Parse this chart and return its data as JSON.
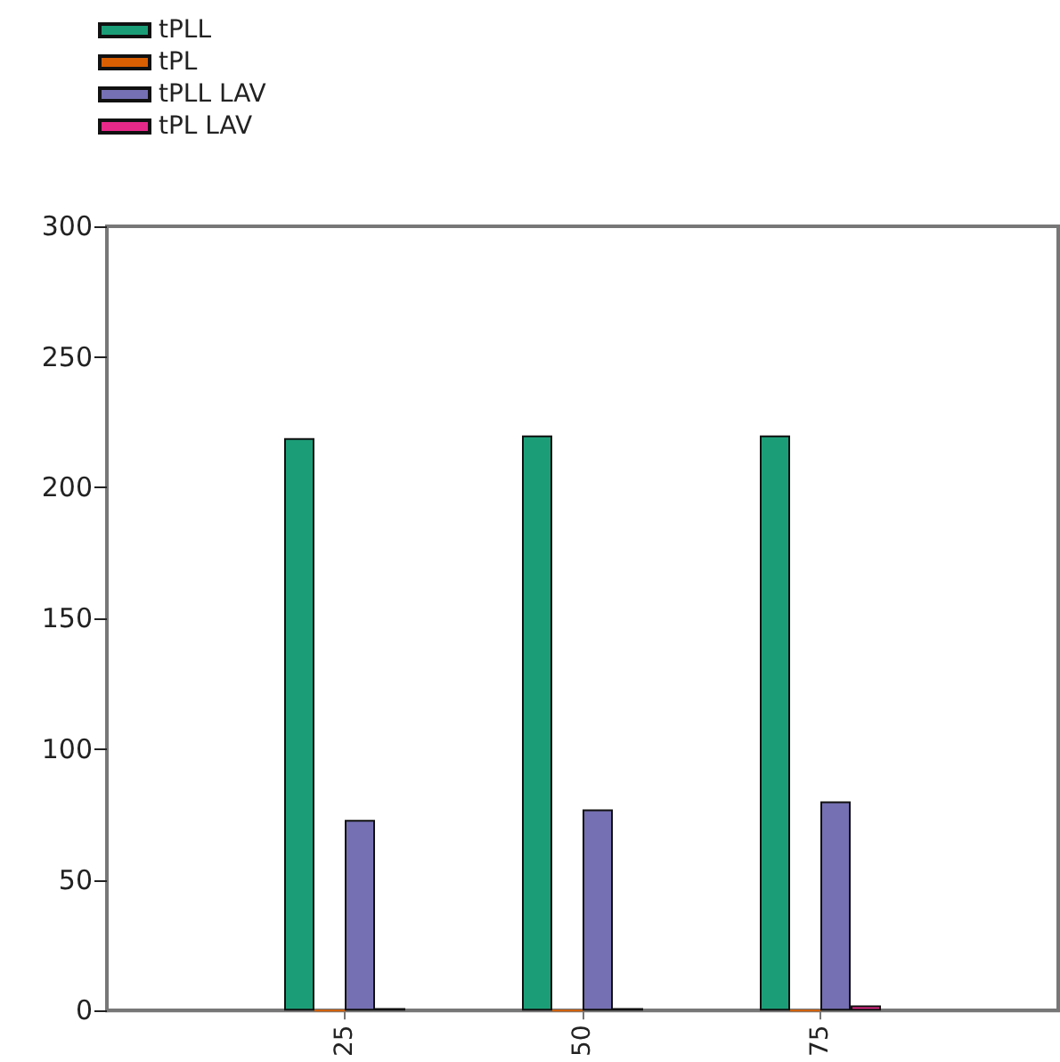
{
  "chart_data": {
    "type": "bar",
    "x": [
      25,
      50,
      75
    ],
    "xlim": [
      0,
      100
    ],
    "xticks": [
      25,
      50,
      75
    ],
    "ylim": [
      0,
      300
    ],
    "yticks": [
      0,
      50,
      100,
      150,
      200,
      250,
      300
    ],
    "grid": false,
    "legend": "top left",
    "series": [
      {
        "name": "tPLL",
        "color": "#1b9e77",
        "values": [
          219,
          220,
          220
        ]
      },
      {
        "name": "tPL",
        "color": "#d95f02",
        "values": [
          0,
          0,
          0
        ]
      },
      {
        "name": "tPLL LAV",
        "color": "#7570b3",
        "values": [
          73,
          77,
          80
        ]
      },
      {
        "name": "tPL LAV",
        "color": "#e7298a",
        "values": [
          1,
          1,
          2
        ]
      }
    ]
  }
}
